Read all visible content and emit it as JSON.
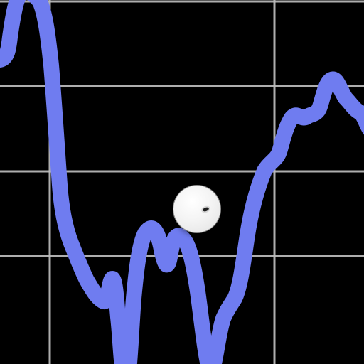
{
  "scene": {
    "background_color": "#000000",
    "grid_color": "#bdbdbd",
    "track_color": "#6f7cf0",
    "ball_color": "#f4f4f4",
    "ball_mark_color": "#1f1f1f"
  },
  "icons": {
    "ball": "ball-icon",
    "ball_mark": "ball-mark-icon"
  }
}
